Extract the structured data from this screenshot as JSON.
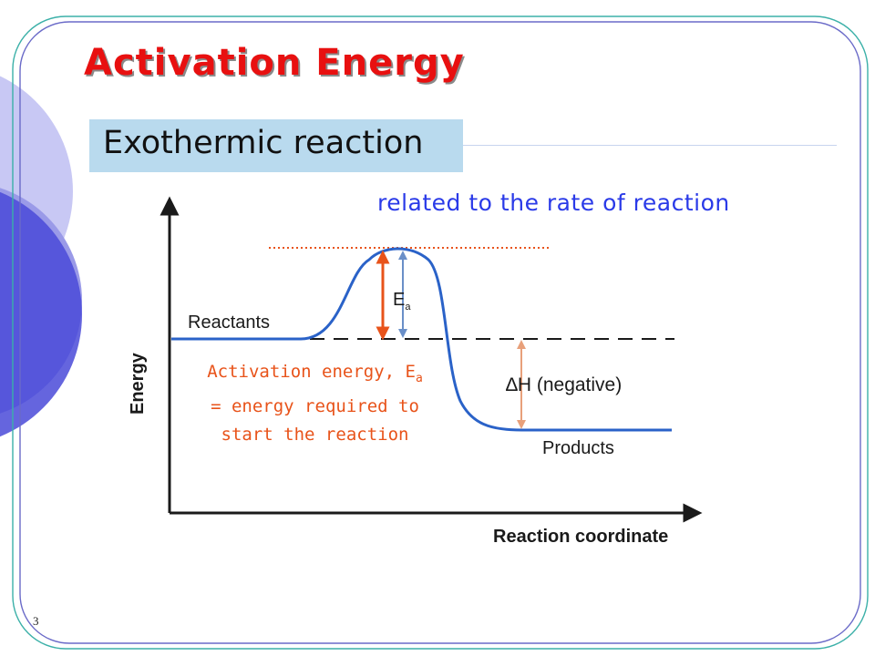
{
  "slide": {
    "title": "Activation Energy",
    "subtitle": "Exothermic reaction",
    "note": "related to the rate of reaction",
    "page_number": "3"
  },
  "diagram": {
    "y_axis_label": "Energy",
    "x_axis_label": "Reaction coordinate",
    "reactants_label": "Reactants",
    "products_label": "Products",
    "ea_label": "E",
    "ea_subscript": "a",
    "delta_h_label": "∆H (negative)",
    "activation_note": {
      "line1": "Activation energy, E",
      "line1_subscript": "a",
      "line2": "= energy required to",
      "line3": "start the reaction"
    }
  },
  "colors": {
    "title": "#e81010",
    "note": "#2a3ae8",
    "activation_arrow": "#e8531a",
    "ea_arrow": "#6a8fc8",
    "delta_h_arrow": "#e8a07a",
    "curve": "#2a62c8",
    "dotted_line": "#e8531a",
    "decor_circles": [
      "#4747d9",
      "#8a8ae8",
      "#c8c8f4"
    ],
    "frame_border": "#3bb0a8"
  }
}
